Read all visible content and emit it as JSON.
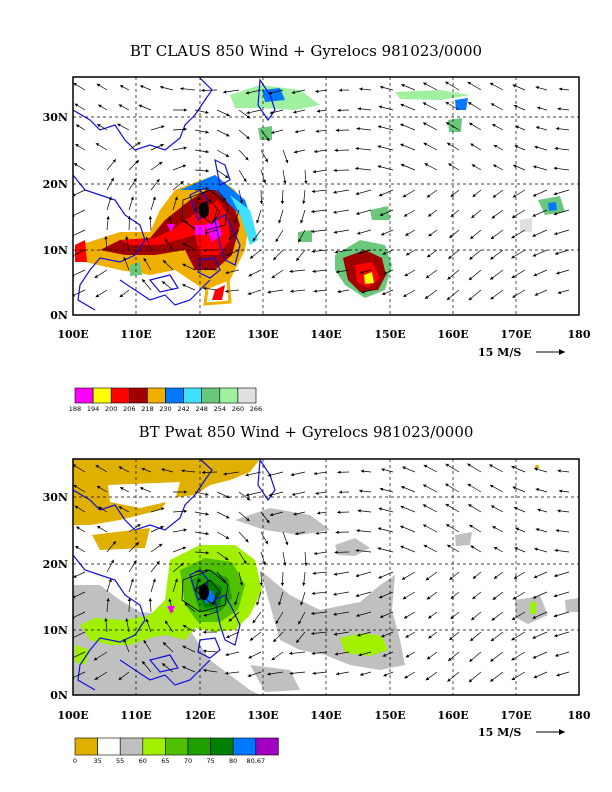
{
  "panels": [
    {
      "id": "claus",
      "title": "BT CLAUS 850 Wind + Gyrelocs 981023/0000",
      "lat_labels": [
        "30N",
        "20N",
        "10N",
        "0N"
      ],
      "lon_labels": [
        "100E",
        "110E",
        "120E",
        "130E",
        "140E",
        "150E",
        "160E",
        "170E",
        "180"
      ],
      "reference_vector": "15 M/S",
      "colorbar": {
        "labels": [
          "188",
          "194",
          "200",
          "206",
          "218",
          "230",
          "242",
          "248",
          "254",
          "260",
          "266"
        ],
        "colors": [
          "#ff00ff",
          "#ffff00",
          "#ff0000",
          "#a00000",
          "#f0b000",
          "#0078ff",
          "#40e0ff",
          "#6ac87a",
          "#a0f0a0",
          "#e0e0e0"
        ]
      }
    },
    {
      "id": "pwat",
      "title": "BT Pwat 850 Wind + Gyrelocs 981023/0000",
      "lat_labels": [
        "30N",
        "20N",
        "10N",
        "0N"
      ],
      "lon_labels": [
        "100E",
        "110E",
        "120E",
        "130E",
        "140E",
        "150E",
        "160E",
        "170E",
        "180"
      ],
      "reference_vector": "15 M/S",
      "colorbar": {
        "labels": [
          "0",
          "35",
          "55",
          "60",
          "65",
          "70",
          "75",
          "80",
          "80.67"
        ],
        "colors": [
          "#e0b000",
          "#ffffff",
          "#c0c0c0",
          "#a0f000",
          "#50c000",
          "#20a000",
          "#008000",
          "#0078ff",
          "#a000c0"
        ]
      }
    }
  ]
}
